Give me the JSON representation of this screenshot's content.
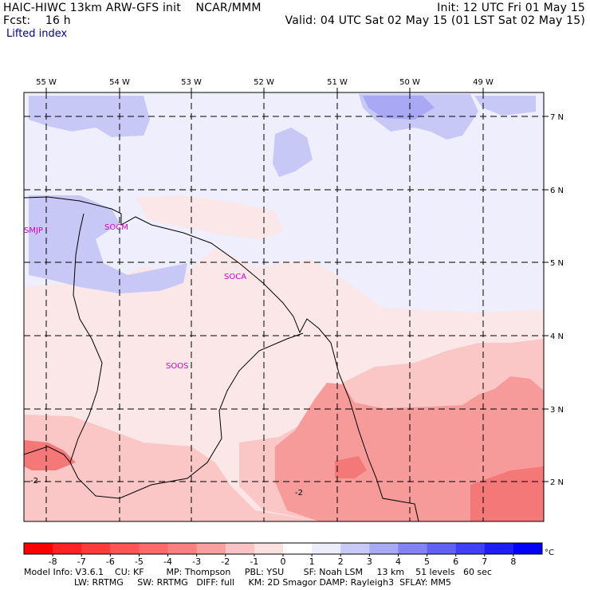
{
  "header": {
    "left_line1": "HAIC-HIWC 13km ARW-GFS init    NCAR/MMM",
    "left_line2": "Fcst:    16 h",
    "subtitle": "Lifted index",
    "right_line1": "Init: 12 UTC Fri 01 May 15",
    "right_line2": "Valid: 04 UTC Sat 02 May 15 (01 LST Sat 02 May 15)"
  },
  "map": {
    "lon_labels": [
      "55 W",
      "54 W",
      "53 W",
      "52 W",
      "51 W",
      "50 W",
      "49 W"
    ],
    "lat_labels": [
      "7 N",
      "6 N",
      "5 N",
      "4 N",
      "3 N",
      "2 N"
    ],
    "stations": [
      "SMJP",
      "SOCM",
      "SOCA",
      "SOOS"
    ],
    "contour_labels": [
      "-2",
      "-2"
    ]
  },
  "colorbar": {
    "ticks": [
      "-8",
      "-7",
      "-6",
      "-5",
      "-4",
      "-3",
      "-2",
      "-1",
      "0",
      "1",
      "2",
      "3",
      "4",
      "5",
      "6",
      "7",
      "8"
    ],
    "unit": "°C",
    "colors": [
      "#ff0000",
      "#ff2222",
      "#ff3c3c",
      "#ff5555",
      "#fe6a6a",
      "#fb8080",
      "#f8a0a0",
      "#fbc3c3",
      "#fde0e0",
      "#ffffff",
      "#ececff",
      "#c9c9f8",
      "#a8a8f5",
      "#8383f5",
      "#6262f5",
      "#4040f8",
      "#1e1ef8",
      "#0000ff"
    ]
  },
  "footer": {
    "line1": "Model Info: V3.6.1    CU: KF        MP: Thompson     PBL: YSU       SF: Noah LSM     13 km    51 levels   60 sec",
    "line2": "                  LW: RRTMG     SW: RRTMG   DIFF: full     KM: 2D Smagor DAMP: Rayleigh3  SFLAY: MM5"
  }
}
